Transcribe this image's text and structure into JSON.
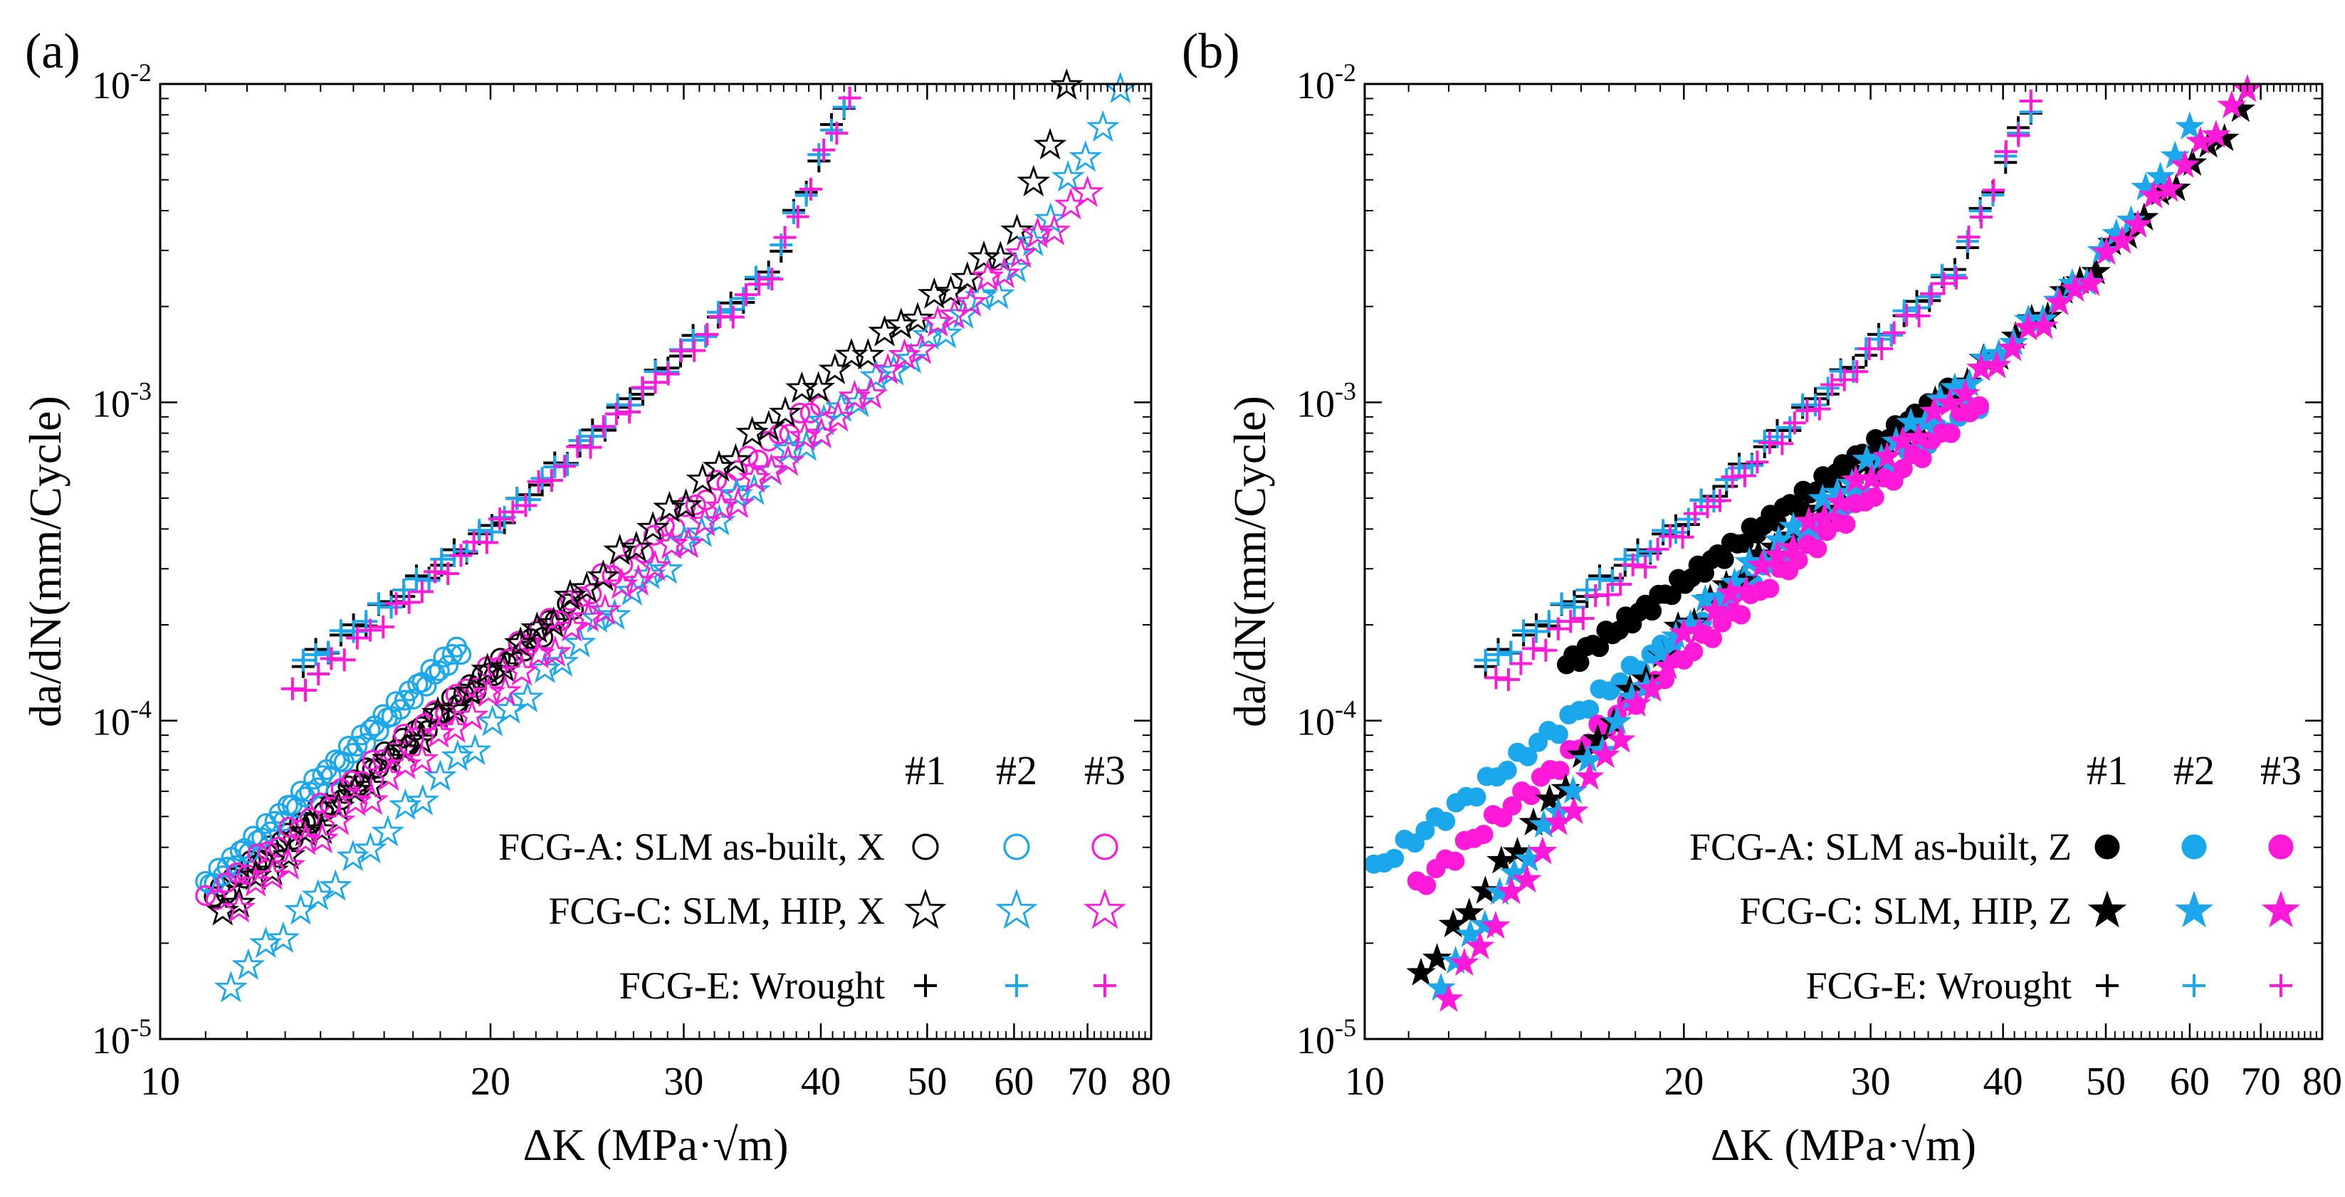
{
  "figure": {
    "colors": {
      "black": "#000000",
      "blue": "#1aa7ec",
      "magenta": "#ff1ad9"
    },
    "legend_columns": [
      "#1",
      "#2",
      "#3"
    ]
  },
  "chart_data": [
    {
      "type": "scatter",
      "panel_label": "(a)",
      "xlabel": "ΔK (MPa·√m)",
      "ylabel": "da/dN(mm/Cycle)",
      "xscale": "log",
      "yscale": "log",
      "xlim": [
        10,
        80
      ],
      "ylim": [
        1e-05,
        0.01
      ],
      "xticks": [
        10,
        20,
        30,
        40,
        50,
        60,
        70,
        80
      ],
      "yticks": [
        1e-05,
        0.0001,
        0.001,
        0.01
      ],
      "marker_fill": "open",
      "legend": {
        "position": "bottom-right",
        "rows": [
          {
            "label": "FCG-A: SLM as-built, X",
            "marker": "circle"
          },
          {
            "label": "FCG-C: SLM, HIP, X",
            "marker": "star"
          },
          {
            "label": "FCG-E: Wrought",
            "marker": "plus"
          }
        ]
      },
      "series": [
        {
          "name": "FCG-A #1",
          "marker": "circle",
          "color": "black",
          "x": [
            11.2,
            23.8
          ],
          "y": [
            2.8e-05,
            0.00023
          ]
        },
        {
          "name": "FCG-A #2",
          "marker": "circle",
          "color": "blue",
          "x": [
            11.0,
            18.8
          ],
          "y": [
            3e-05,
            0.00017
          ]
        },
        {
          "name": "FCG-A #3",
          "marker": "circle",
          "color": "magenta",
          "x": [
            11.0,
            40.0
          ],
          "y": [
            2.7e-05,
            0.001
          ]
        },
        {
          "name": "FCG-C #1",
          "marker": "star",
          "color": "black",
          "x": [
            11.4,
            39.0,
            48.0,
            60.0,
            67.0
          ],
          "y": [
            2.5e-05,
            0.0011,
            0.0018,
            0.0032,
            0.0095
          ]
        },
        {
          "name": "FCG-C #2",
          "marker": "star",
          "color": "blue",
          "x": [
            11.6,
            25.0,
            41.0,
            60.0,
            75.0
          ],
          "y": [
            1.5e-05,
            0.0002,
            0.0009,
            0.0025,
            0.0092
          ]
        },
        {
          "name": "FCG-C #3",
          "marker": "star",
          "color": "magenta",
          "x": [
            11.8,
            43.0,
            70.0
          ],
          "y": [
            2.7e-05,
            0.001,
            0.0045
          ]
        },
        {
          "name": "FCG-E #1",
          "marker": "plus",
          "color": "black",
          "x": [
            13.5,
            20.0,
            36.0,
            42.0
          ],
          "y": [
            0.00015,
            0.0004,
            0.0026,
            0.0088
          ]
        },
        {
          "name": "FCG-E #2",
          "marker": "plus",
          "color": "blue",
          "x": [
            13.5,
            20.0,
            36.0,
            42.0
          ],
          "y": [
            0.00015,
            0.0004,
            0.0026,
            0.0088
          ]
        },
        {
          "name": "FCG-E #3",
          "marker": "plus",
          "color": "magenta",
          "x": [
            13.2,
            20.0,
            36.0,
            42.5
          ],
          "y": [
            0.00012,
            0.00039,
            0.0025,
            0.009
          ]
        }
      ]
    },
    {
      "type": "scatter",
      "panel_label": "(b)",
      "xlabel": "ΔK (MPa·√m)",
      "ylabel": "da/dN(mm/Cycle)",
      "xscale": "log",
      "yscale": "log",
      "xlim": [
        10,
        80
      ],
      "ylim": [
        1e-05,
        0.01
      ],
      "xticks": [
        10,
        20,
        30,
        40,
        50,
        60,
        70,
        80
      ],
      "yticks": [
        1e-05,
        0.0001,
        0.001,
        0.01
      ],
      "marker_fill": "solid",
      "legend": {
        "position": "bottom-right",
        "rows": [
          {
            "label": "FCG-A: SLM as-built, Z",
            "marker": "circle"
          },
          {
            "label": "FCG-C: SLM, HIP, Z",
            "marker": "star"
          },
          {
            "label": "FCG-E: Wrought",
            "marker": "plus"
          }
        ]
      },
      "series": [
        {
          "name": "FCG-A #1",
          "marker": "circle",
          "color": "black",
          "x": [
            15.5,
            36.0
          ],
          "y": [
            0.00015,
            0.0011
          ]
        },
        {
          "name": "FCG-A #2",
          "marker": "circle",
          "color": "blue",
          "x": [
            10.2,
            38.0
          ],
          "y": [
            3.4e-05,
            0.001
          ]
        },
        {
          "name": "FCG-A #3",
          "marker": "circle",
          "color": "magenta",
          "x": [
            11.2,
            38.0
          ],
          "y": [
            3e-05,
            0.001
          ]
        },
        {
          "name": "FCG-C #1",
          "marker": "star",
          "color": "black",
          "x": [
            11.3,
            20.0,
            48.0,
            67.0
          ],
          "y": [
            1.6e-05,
            0.0002,
            0.0025,
            0.008
          ]
        },
        {
          "name": "FCG-C #2",
          "marker": "star",
          "color": "blue",
          "x": [
            11.8,
            20.0,
            48.0,
            60.0
          ],
          "y": [
            1.5e-05,
            0.0002,
            0.0025,
            0.007
          ]
        },
        {
          "name": "FCG-C #3",
          "marker": "star",
          "color": "magenta",
          "x": [
            12.0,
            20.0,
            48.0,
            68.0
          ],
          "y": [
            1.4e-05,
            0.00018,
            0.0024,
            0.0095
          ]
        },
        {
          "name": "FCG-E #1",
          "marker": "plus",
          "color": "black",
          "x": [
            13.0,
            20.0,
            36.0,
            42.5
          ],
          "y": [
            0.00015,
            0.00042,
            0.0026,
            0.0085
          ]
        },
        {
          "name": "FCG-E #2",
          "marker": "plus",
          "color": "blue",
          "x": [
            13.0,
            20.0,
            36.0,
            42.5
          ],
          "y": [
            0.00015,
            0.00042,
            0.0026,
            0.0085
          ]
        },
        {
          "name": "FCG-E #3",
          "marker": "plus",
          "color": "magenta",
          "x": [
            13.3,
            20.0,
            36.0,
            42.5
          ],
          "y": [
            0.00013,
            0.0004,
            0.0025,
            0.0088
          ]
        }
      ]
    }
  ]
}
